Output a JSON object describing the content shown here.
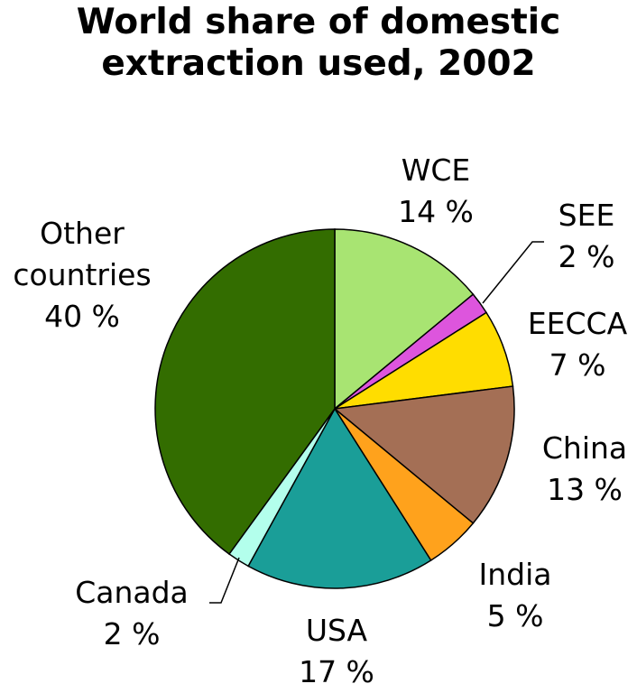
{
  "chart_data": {
    "type": "pie",
    "title_lines": [
      "World share of domestic",
      "extraction used, 2002"
    ],
    "slices": [
      {
        "name": "WCE",
        "value": 14,
        "value_label": "14 %",
        "color": "#a8e472"
      },
      {
        "name": "SEE",
        "value": 2,
        "value_label": "2 %",
        "color": "#dd55dd"
      },
      {
        "name": "EECCA",
        "value": 7,
        "value_label": "7 %",
        "color": "#ffdd00"
      },
      {
        "name": "China",
        "value": 13,
        "value_label": "13 %",
        "color": "#a46f55"
      },
      {
        "name": "India",
        "value": 5,
        "value_label": "5 %",
        "color": "#ffa21c"
      },
      {
        "name": "USA",
        "value": 17,
        "value_label": "17 %",
        "color": "#1a9e98"
      },
      {
        "name": "Canada",
        "value": 2,
        "value_label": "2 %",
        "color": "#b3ffec"
      },
      {
        "name": "Other countries",
        "name_lines": [
          "Other",
          "countries"
        ],
        "value": 40,
        "value_label": "40 %",
        "color": "#336d00"
      }
    ]
  }
}
